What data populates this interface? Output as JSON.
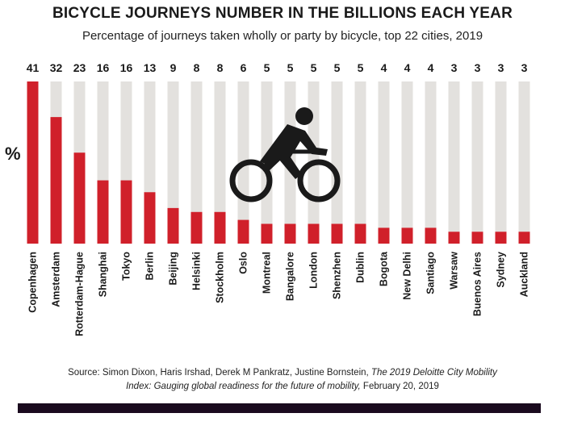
{
  "chart_data": {
    "type": "bar",
    "title": "BICYCLE JOURNEYS NUMBER IN THE BILLIONS EACH YEAR",
    "subtitle": "Percentage of journeys taken wholly or party by bicycle, top 22 cities, 2019",
    "ylabel": "%",
    "ylim": [
      0,
      41
    ],
    "categories": [
      "Copenhagen",
      "Amsterdam",
      "Rotterdam-Hague",
      "Shanghai",
      "Tokyo",
      "Berlin",
      "Beijing",
      "Helsinki",
      "Stockholm",
      "Oslo",
      "Montreal",
      "Bangalore",
      "London",
      "Shenzhen",
      "Dublin",
      "Bogota",
      "New Delhi",
      "Santiago",
      "Warsaw",
      "Buenos Aires",
      "Sydney",
      "Auckland"
    ],
    "values": [
      41,
      32,
      23,
      16,
      16,
      13,
      9,
      8,
      8,
      6,
      5,
      5,
      5,
      5,
      5,
      4,
      4,
      4,
      3,
      3,
      3,
      3
    ],
    "colors": {
      "bar": "#d0202a",
      "track": "#e3e1de",
      "icon": "#1a1a1a"
    },
    "icon": "cyclist-icon"
  },
  "source": {
    "prefix": "Source: Simon Dixon, Haris Irshad, Derek M Pankratz, Justine Bornstein, ",
    "title_part1": "The 2019 Deloitte City Mobility",
    "title_part2": "Index: Gauging global readiness for the future of mobility,",
    "suffix": " February 20, 2019"
  }
}
